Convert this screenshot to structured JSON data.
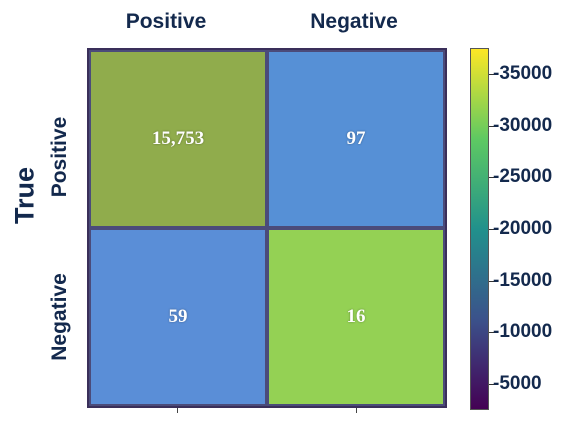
{
  "chart_data": {
    "type": "heatmap",
    "column_labels": [
      "Positive",
      "Negative"
    ],
    "row_labels": [
      "Positive",
      "Negative"
    ],
    "ylabel": "True",
    "cells": [
      {
        "text": "15,753",
        "color": "#90ac4c"
      },
      {
        "text": "97",
        "color": "#5690d6"
      },
      {
        "text": "59",
        "color": "#5a8ed7"
      },
      {
        "text": "16",
        "color": "#94d154"
      }
    ],
    "colorbar": {
      "ticks": [
        "-35000",
        "-30000",
        "-25000",
        "-20000",
        "-15000",
        "-10000",
        "-5000"
      ],
      "tick_values": [
        35000,
        30000,
        25000,
        20000,
        15000,
        10000,
        5000
      ],
      "range": [
        2500,
        37500
      ],
      "colormap": [
        "#440154",
        "#3b528b",
        "#21918c",
        "#5ec962",
        "#fde725"
      ]
    }
  }
}
